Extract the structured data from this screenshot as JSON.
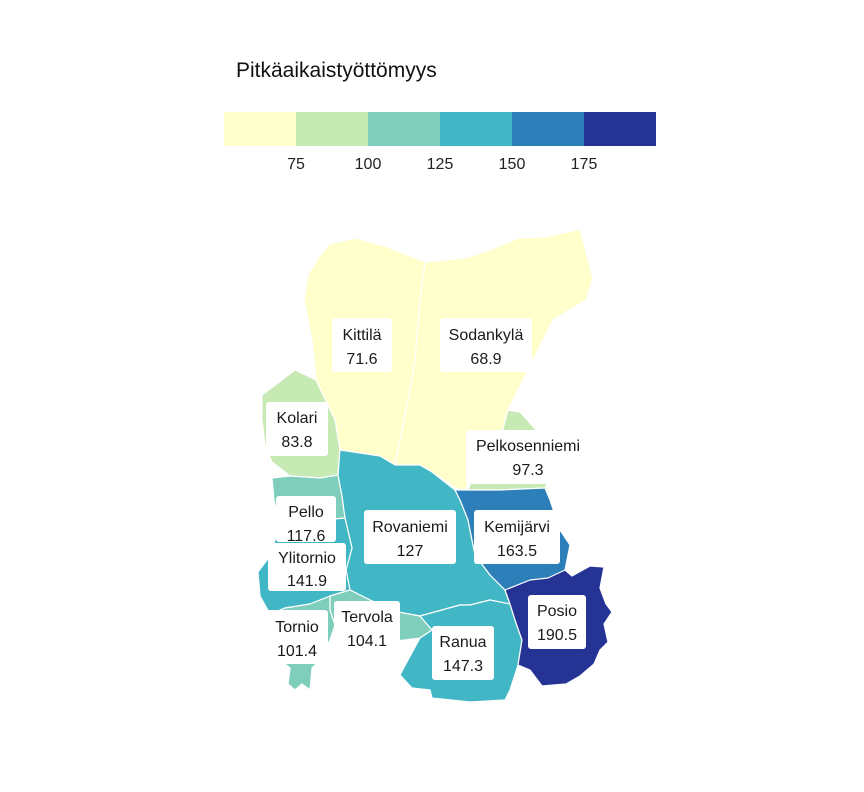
{
  "legend": {
    "title": "Pitkäaikaistyöttömyys",
    "colors": [
      "#ffffcc",
      "#c7e9b4",
      "#7fcdbb",
      "#41b6c4",
      "#2c7fb8",
      "#253494"
    ],
    "ticks": [
      "75",
      "100",
      "125",
      "150",
      "175"
    ],
    "breaks": [
      75,
      100,
      125,
      150,
      175
    ]
  },
  "regions": [
    {
      "name": "Kittilä",
      "value": "71.6",
      "color": "#ffffcc"
    },
    {
      "name": "Sodankylä",
      "value": "68.9",
      "color": "#ffffcc"
    },
    {
      "name": "Kolari",
      "value": "83.8",
      "color": "#c7e9b4"
    },
    {
      "name": "Pelkosenniemi",
      "value": "97.3",
      "color": "#c7e9b4"
    },
    {
      "name": "Pello",
      "value": "117.6",
      "color": "#7fcdbb"
    },
    {
      "name": "Rovaniemi",
      "value": "127",
      "color": "#41b6c4"
    },
    {
      "name": "Kemijärvi",
      "value": "163.5",
      "color": "#2c7fb8"
    },
    {
      "name": "Ylitornio",
      "value": "141.9",
      "color": "#41b6c4"
    },
    {
      "name": "Tervola",
      "value": "104.1",
      "color": "#7fcdbb"
    },
    {
      "name": "Tornio",
      "value": "101.4",
      "color": "#7fcdbb"
    },
    {
      "name": "Ranua",
      "value": "147.3",
      "color": "#41b6c4"
    },
    {
      "name": "Posio",
      "value": "190.5",
      "color": "#253494"
    }
  ]
}
